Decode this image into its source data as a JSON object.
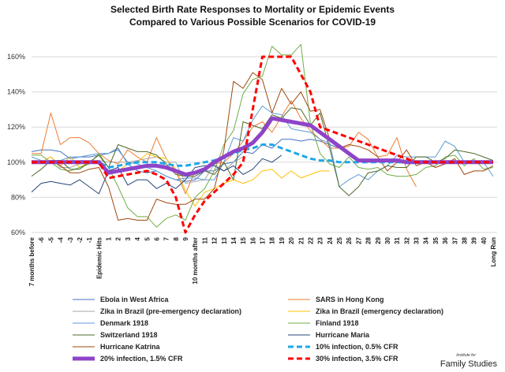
{
  "chart_data": {
    "type": "line",
    "title": "Selected Birth Rate Responses to Mortality or Epidemic Events",
    "subtitle": "Compared to Various Possible Scenarios for COVID-19",
    "xlabel": "",
    "ylabel": "",
    "ylim": [
      60,
      160
    ],
    "yticks": [
      "60%",
      "80%",
      "100%",
      "120%",
      "140%",
      "160%"
    ],
    "ytick_values": [
      60,
      80,
      100,
      120,
      140,
      160
    ],
    "grid": true,
    "legend_placement": "bottom",
    "categories": [
      "7 months before",
      "-6",
      "-5",
      "-4",
      "-3",
      "-2",
      "-1",
      "Epidemic Hits",
      "1",
      "2",
      "3",
      "4",
      "5",
      "6",
      "7",
      "8",
      "9",
      "10 months after",
      "11",
      "12",
      "13",
      "14",
      "15",
      "16",
      "17",
      "18",
      "19",
      "20",
      "21",
      "22",
      "23",
      "24",
      "25",
      "26",
      "27",
      "28",
      "29",
      "30",
      "31",
      "32",
      "33",
      "34",
      "35",
      "36",
      "37",
      "38",
      "39",
      "40",
      "Long Run"
    ],
    "series": [
      {
        "name": "Ebola in West Africa",
        "color": "#4472C4",
        "width": 1,
        "dash": false,
        "values": [
          106,
          107,
          107,
          106,
          102,
          103,
          103,
          104,
          105,
          108,
          99,
          95,
          94,
          95,
          92,
          90,
          89,
          90,
          95,
          95,
          99,
          100,
          106,
          105,
          110,
          108,
          113,
          113,
          112,
          113,
          112,
          110,
          108,
          104,
          101,
          100,
          100,
          101,
          100,
          null,
          null,
          null,
          null,
          null,
          null,
          null,
          null,
          null,
          null
        ]
      },
      {
        "name": "SARS in Hong Kong",
        "color": "#ED7D31",
        "width": 1,
        "dash": false,
        "values": [
          105,
          105,
          128,
          110,
          114,
          114,
          111,
          105,
          101,
          99,
          107,
          103,
          100,
          114,
          102,
          95,
          82,
          95,
          95,
          99,
          100,
          105,
          112,
          120,
          123,
          117,
          126,
          135,
          125,
          118,
          113,
          108,
          108,
          109,
          117,
          113,
          103,
          104,
          114,
          96,
          86,
          null,
          null,
          null,
          null,
          null,
          null,
          null,
          null
        ]
      },
      {
        "name": "Zika in Brazil  (pre-emergency declaration)",
        "color": "#A5A5A5",
        "width": 1,
        "dash": false,
        "values": [
          101,
          100,
          103,
          97,
          97,
          99,
          100,
          101,
          100,
          100,
          100,
          101,
          102,
          103,
          100,
          100,
          88,
          89,
          90,
          99,
          95,
          100,
          103,
          null,
          null,
          null,
          null,
          null,
          null,
          null,
          null,
          null,
          null,
          null,
          null,
          null,
          null,
          null,
          null,
          null,
          null,
          null,
          null,
          null,
          null,
          null,
          null,
          null,
          null
        ]
      },
      {
        "name": "Zika in Brazil (emergency declaration)",
        "color": "#FFC000",
        "width": 1,
        "dash": false,
        "values": [
          99,
          100,
          103,
          98,
          103,
          97,
          100,
          100,
          94,
          95,
          99,
          100,
          105,
          103,
          102,
          96,
          84,
          75,
          83,
          85,
          88,
          90,
          88,
          90,
          95,
          96,
          91,
          95,
          91,
          93,
          95,
          95,
          null,
          null,
          null,
          null,
          null,
          null,
          null,
          null,
          null,
          null,
          null,
          null,
          null,
          null,
          null,
          null,
          null
        ]
      },
      {
        "name": "Denmark 1918",
        "color": "#5B9BD5",
        "width": 1,
        "dash": false,
        "values": [
          103,
          101,
          100,
          101,
          103,
          103,
          104,
          105,
          105,
          107,
          100,
          99,
          97,
          95,
          92,
          90,
          91,
          91,
          90,
          90,
          100,
          114,
          112,
          124,
          132,
          128,
          127,
          119,
          118,
          117,
          113,
          111,
          86,
          90,
          93,
          90,
          95,
          98,
          104,
          103,
          103,
          103,
          103,
          112,
          109,
          100,
          100,
          100,
          92
        ]
      },
      {
        "name": "Finland 1918",
        "color": "#70AD47",
        "width": 1,
        "dash": false,
        "values": [
          104,
          104,
          100,
          96,
          95,
          97,
          99,
          105,
          97,
          86,
          74,
          69,
          69,
          63,
          68,
          70,
          67,
          80,
          85,
          95,
          110,
          118,
          139,
          147,
          149,
          166,
          161,
          161,
          167,
          122,
          105,
          99,
          97,
          103,
          97,
          96,
          97,
          93,
          92,
          92,
          93,
          97,
          98,
          103,
          104,
          98,
          102,
          96,
          97
        ]
      },
      {
        "name": "Switzerland 1918",
        "color": "#4E6B2A",
        "width": 1,
        "dash": false,
        "values": [
          92,
          96,
          101,
          101,
          96,
          96,
          100,
          104,
          97,
          110,
          108,
          106,
          106,
          104,
          99,
          93,
          92,
          92,
          95,
          93,
          100,
          90,
          123,
          121,
          119,
          127,
          125,
          131,
          130,
          121,
          128,
          108,
          86,
          81,
          86,
          94,
          95,
          98,
          97,
          97,
          103,
          103,
          100,
          102,
          107,
          106,
          105,
          103,
          101
        ]
      },
      {
        "name": "Hurricane Maria",
        "color": "#264478",
        "width": 1,
        "dash": false,
        "values": [
          83,
          88,
          89,
          88,
          87,
          90,
          86,
          82,
          95,
          97,
          87,
          90,
          90,
          85,
          88,
          85,
          90,
          97,
          98,
          98,
          95,
          98,
          93,
          96,
          102,
          100,
          104,
          null,
          null,
          null,
          null,
          null,
          null,
          null,
          null,
          null,
          null,
          null,
          null,
          null,
          null,
          null,
          null,
          null,
          null,
          null,
          null,
          null,
          null
        ]
      },
      {
        "name": "Hurricane Katrina",
        "color": "#9E480E",
        "width": 1,
        "dash": false,
        "values": [
          100,
          100,
          101,
          98,
          94,
          94,
          96,
          97,
          86,
          67,
          68,
          67,
          67,
          79,
          77,
          76,
          76,
          79,
          79,
          85,
          107,
          146,
          142,
          151,
          147,
          128,
          142,
          133,
          140,
          129,
          130,
          113,
          108,
          110,
          109,
          107,
          103,
          95,
          100,
          107,
          98,
          100,
          97,
          99,
          102,
          93,
          95,
          95,
          98
        ]
      },
      {
        "name": "10% infection, 0.5% CFR",
        "color": "#1EA7E8",
        "width": 3,
        "dash": true,
        "values": [
          100,
          100,
          100,
          100,
          100,
          100,
          100,
          100,
          97,
          98,
          99,
          100,
          100,
          100,
          99,
          98,
          98,
          99,
          100,
          101,
          103,
          105,
          107,
          108,
          110,
          110,
          108,
          106,
          104,
          102,
          101,
          101,
          100,
          100,
          100,
          100,
          100,
          100,
          100,
          100,
          100,
          100,
          100,
          100,
          100,
          100,
          100,
          100,
          100
        ]
      },
      {
        "name": "20% infection, 1.5% CFR",
        "color": "#8E44C9",
        "width": 5,
        "dash": false,
        "values": [
          100,
          100,
          100,
          100,
          100,
          100,
          100,
          100,
          94,
          95,
          96,
          97,
          98,
          98,
          97,
          95,
          93,
          94,
          96,
          100,
          103,
          106,
          108,
          111,
          117,
          125,
          124,
          123,
          122,
          121,
          117,
          113,
          109,
          105,
          101,
          101,
          101,
          101,
          101,
          100,
          100,
          100,
          100,
          100,
          100,
          100,
          100,
          100,
          100
        ]
      },
      {
        "name": "30% infection, 3.5% CFR",
        "color": "#FF0000",
        "width": 3,
        "dash": true,
        "values": [
          100,
          100,
          100,
          100,
          100,
          100,
          100,
          100,
          91,
          92,
          93,
          94,
          95,
          93,
          90,
          80,
          60,
          70,
          78,
          83,
          88,
          93,
          100,
          130,
          160,
          160,
          160,
          160,
          150,
          140,
          120,
          118,
          116,
          114,
          112,
          110,
          108,
          106,
          104,
          102,
          100,
          100,
          100,
          100,
          100,
          100,
          100,
          100,
          100
        ]
      }
    ]
  },
  "logo": {
    "line1": "Institute for",
    "line2": "Family Studies"
  }
}
